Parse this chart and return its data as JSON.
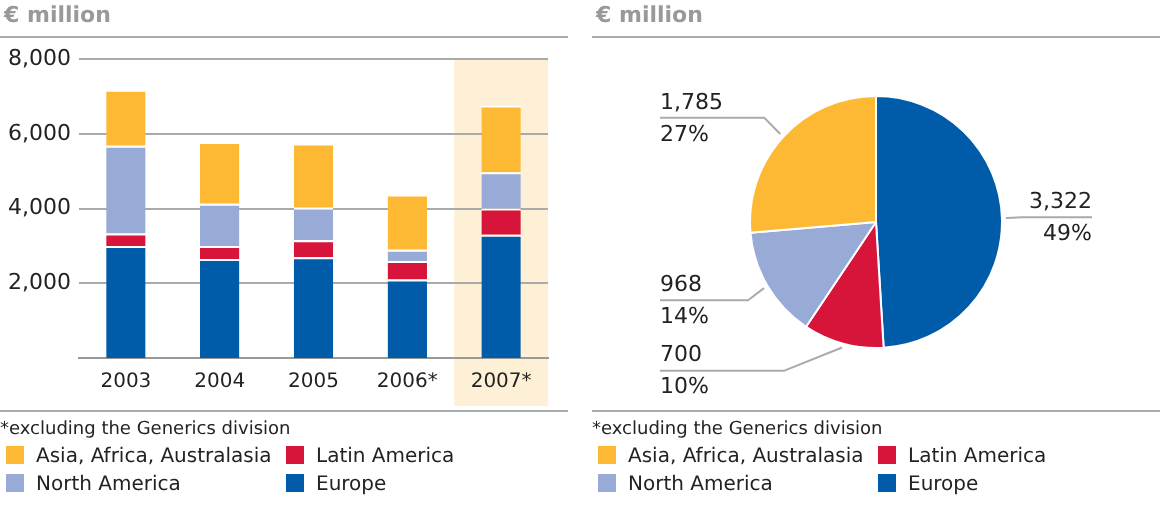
{
  "chart_data": [
    {
      "type": "bar",
      "ylabel": "€ million",
      "categories": [
        "2003",
        "2004",
        "2005",
        "2006*",
        "2007*"
      ],
      "stacked": true,
      "ylim": [
        0,
        8000
      ],
      "yticks": [
        {
          "value": 2000,
          "label": "2,000"
        },
        {
          "value": 4000,
          "label": "4,000"
        },
        {
          "value": 6000,
          "label": "6,000"
        },
        {
          "value": 8000,
          "label": "8,000"
        }
      ],
      "grid": "y",
      "legend": "bottom",
      "series": [
        {
          "name": "Europe",
          "color": "#005ca9",
          "values": [
            3000,
            2650,
            2700,
            2100,
            3300
          ]
        },
        {
          "name": "Latin America",
          "color": "#d7153a",
          "values": [
            330,
            350,
            450,
            500,
            700
          ]
        },
        {
          "name": "North America",
          "color": "#98aad6",
          "values": [
            2350,
            1130,
            870,
            300,
            970
          ]
        },
        {
          "name": "Asia, Africa, Australasia",
          "color": "#fdb933",
          "values": [
            1500,
            1650,
            1720,
            1480,
            1790
          ]
        }
      ],
      "bands": [
        {
          "axis": "x",
          "from": "2007*",
          "to": "2007*",
          "color": "#fdf0d6"
        }
      ],
      "annotations": [
        "*excluding the Generics division"
      ]
    },
    {
      "type": "pie",
      "title": "€ million",
      "categories": [
        "Europe",
        "Latin America",
        "North America",
        "Asia, Africa, Australasia"
      ],
      "values": [
        3322,
        700,
        968,
        1785
      ],
      "colors": [
        "#005ca9",
        "#d7153a",
        "#98aad6",
        "#fdb933"
      ],
      "value_labels": [
        "3,322\n49%",
        "700\n10%",
        "968\n14%",
        "1,785\n27%"
      ],
      "legend": "bottom",
      "annotations": [
        "*excluding the Generics division"
      ]
    }
  ]
}
